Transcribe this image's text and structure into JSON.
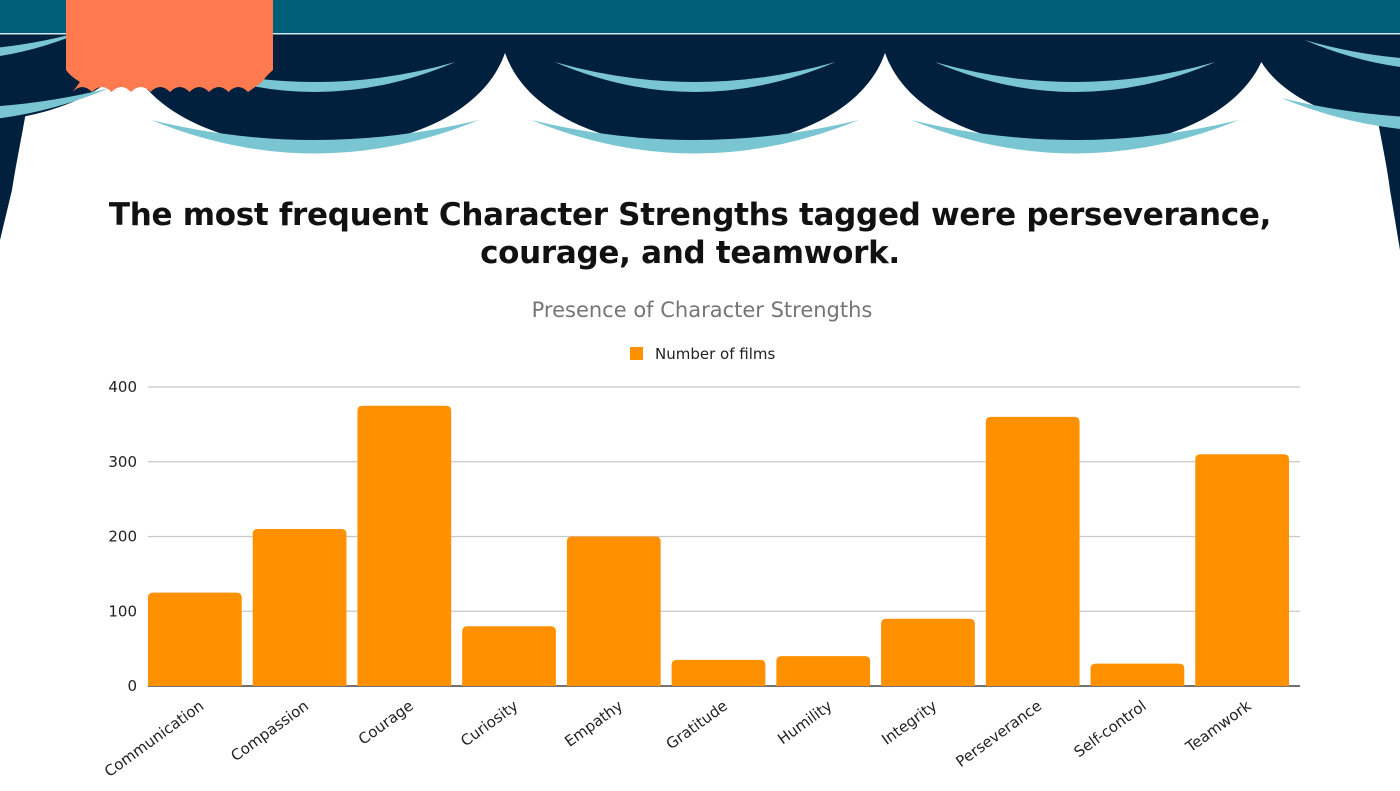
{
  "slide": {
    "headline": "The most frequent Character Strengths tagged were perseverance, courage, and teamwork.",
    "colors": {
      "valance_top": "#005e78",
      "curtain_dark": "#01203d",
      "curtain_highlight": "#79c6d2",
      "tag": "#ff7a4e"
    }
  },
  "chart_data": {
    "type": "bar",
    "title": "Presence of Character Strengths",
    "categories": [
      "Communication",
      "Compassion",
      "Courage",
      "Curiosity",
      "Empathy",
      "Gratitude",
      "Humility",
      "Integrity",
      "Perseverance",
      "Self-control",
      "Teamwork"
    ],
    "series": [
      {
        "name": "Number of films",
        "color": "#ff9100",
        "values": [
          125,
          210,
          375,
          80,
          200,
          35,
          40,
          90,
          360,
          30,
          310
        ]
      }
    ],
    "ylim": [
      0,
      400
    ],
    "yticks": [
      0,
      100,
      200,
      300,
      400
    ],
    "grid": true,
    "legend": "top-center"
  }
}
